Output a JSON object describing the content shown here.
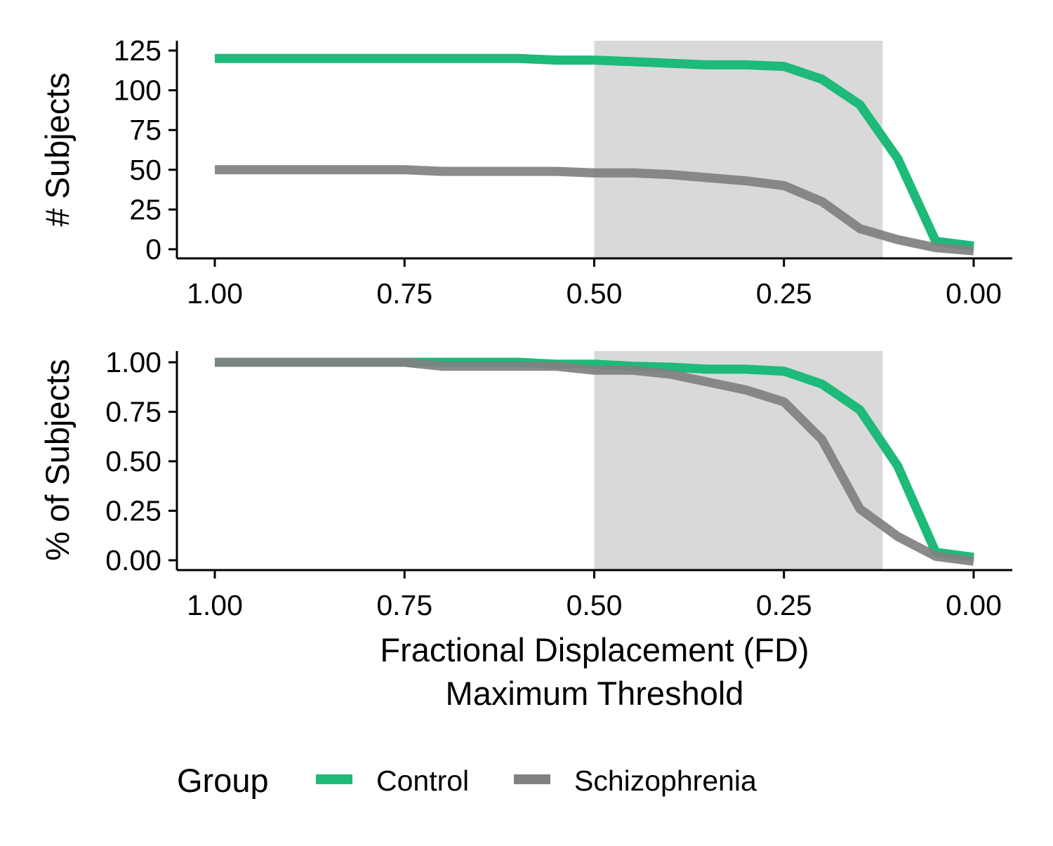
{
  "chart_data": [
    {
      "type": "line",
      "ylabel": "# Subjects",
      "xlabel": "",
      "x_reversed": true,
      "xlim": [
        1.0,
        0.0
      ],
      "ylim": [
        0,
        125
      ],
      "x_ticks": [
        "1.00",
        "0.75",
        "0.50",
        "0.25",
        "0.00"
      ],
      "y_ticks": [
        "0",
        "25",
        "50",
        "75",
        "100",
        "125"
      ],
      "shaded_region": [
        0.5,
        0.12
      ],
      "x": [
        1.0,
        0.95,
        0.9,
        0.85,
        0.8,
        0.75,
        0.7,
        0.65,
        0.6,
        0.55,
        0.5,
        0.45,
        0.4,
        0.35,
        0.3,
        0.25,
        0.2,
        0.15,
        0.1,
        0.05,
        0.0
      ],
      "series": [
        {
          "name": "Control",
          "color": "#1dba7a",
          "values": [
            120,
            120,
            120,
            120,
            120,
            120,
            120,
            120,
            120,
            119,
            119,
            118,
            117,
            116,
            116,
            115,
            107,
            91,
            57,
            5,
            2
          ]
        },
        {
          "name": "Schizophrenia",
          "color": "#808080",
          "values": [
            50,
            50,
            50,
            50,
            50,
            50,
            49,
            49,
            49,
            49,
            48,
            48,
            47,
            45,
            43,
            40,
            30,
            13,
            6,
            1,
            -1
          ]
        }
      ]
    },
    {
      "type": "line",
      "ylabel": "% of Subjects",
      "xlabel": "Fractional Displacement (FD)\nMaximum Threshold",
      "x_reversed": true,
      "xlim": [
        1.0,
        0.0
      ],
      "ylim": [
        0,
        1.0
      ],
      "x_ticks": [
        "1.00",
        "0.75",
        "0.50",
        "0.25",
        "0.00"
      ],
      "y_ticks": [
        "0.00",
        "0.25",
        "0.50",
        "0.75",
        "1.00"
      ],
      "shaded_region": [
        0.5,
        0.12
      ],
      "x": [
        1.0,
        0.95,
        0.9,
        0.85,
        0.8,
        0.75,
        0.7,
        0.65,
        0.6,
        0.55,
        0.5,
        0.45,
        0.4,
        0.35,
        0.3,
        0.25,
        0.2,
        0.15,
        0.1,
        0.05,
        0.0
      ],
      "series": [
        {
          "name": "Control",
          "color": "#1dba7a",
          "values": [
            1.0,
            1.0,
            1.0,
            1.0,
            1.0,
            1.0,
            1.0,
            1.0,
            1.0,
            0.99,
            0.99,
            0.98,
            0.975,
            0.965,
            0.965,
            0.955,
            0.89,
            0.76,
            0.475,
            0.04,
            0.015
          ]
        },
        {
          "name": "Schizophrenia",
          "color": "#808080",
          "values": [
            1.0,
            1.0,
            1.0,
            1.0,
            1.0,
            1.0,
            0.98,
            0.98,
            0.98,
            0.98,
            0.96,
            0.96,
            0.94,
            0.9,
            0.86,
            0.8,
            0.61,
            0.26,
            0.12,
            0.02,
            -0.005
          ]
        }
      ]
    }
  ],
  "legend": {
    "title": "Group",
    "items": [
      {
        "label": "Control",
        "color": "#1dba7a"
      },
      {
        "label": "Schizophrenia",
        "color": "#808080"
      }
    ]
  },
  "shade_color": "#d9d9d9"
}
